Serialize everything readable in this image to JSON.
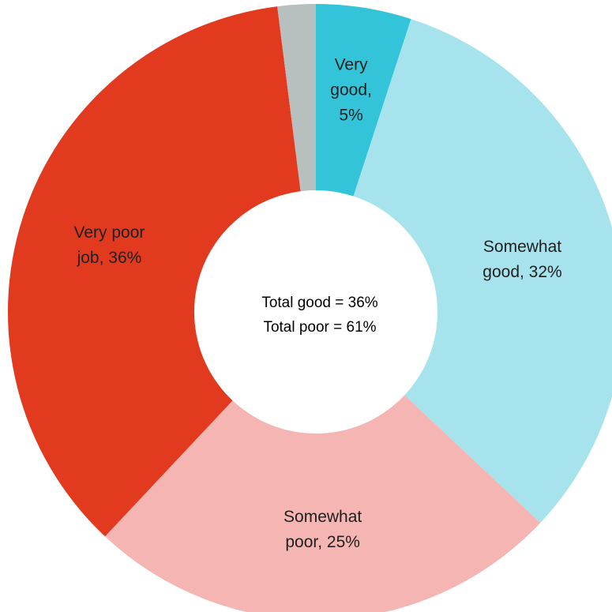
{
  "chart_data": {
    "type": "pie",
    "variant": "donut",
    "title": "",
    "slices": [
      {
        "name": "Very good",
        "value": 5,
        "color": "#33c4da",
        "label_lines": [
          "Very",
          "good,",
          "5%"
        ]
      },
      {
        "name": "Somewhat good",
        "value": 32,
        "color": "#a6e3ec",
        "label_lines": [
          "Somewhat",
          "good, 32%"
        ]
      },
      {
        "name": "Somewhat poor",
        "value": 25,
        "color": "#f5b5b3",
        "label_lines": [
          "Somewhat",
          "poor, 25%"
        ]
      },
      {
        "name": "Very poor job",
        "value": 36,
        "color": "#e23a1f",
        "label_lines": [
          "Very poor",
          "job, 36%"
        ]
      },
      {
        "name": "",
        "value": 2,
        "color": "#b8c0bf",
        "label_lines": []
      }
    ],
    "center_text": [
      "Total good = 36%",
      "Total poor = 61%"
    ],
    "legend": "none"
  }
}
